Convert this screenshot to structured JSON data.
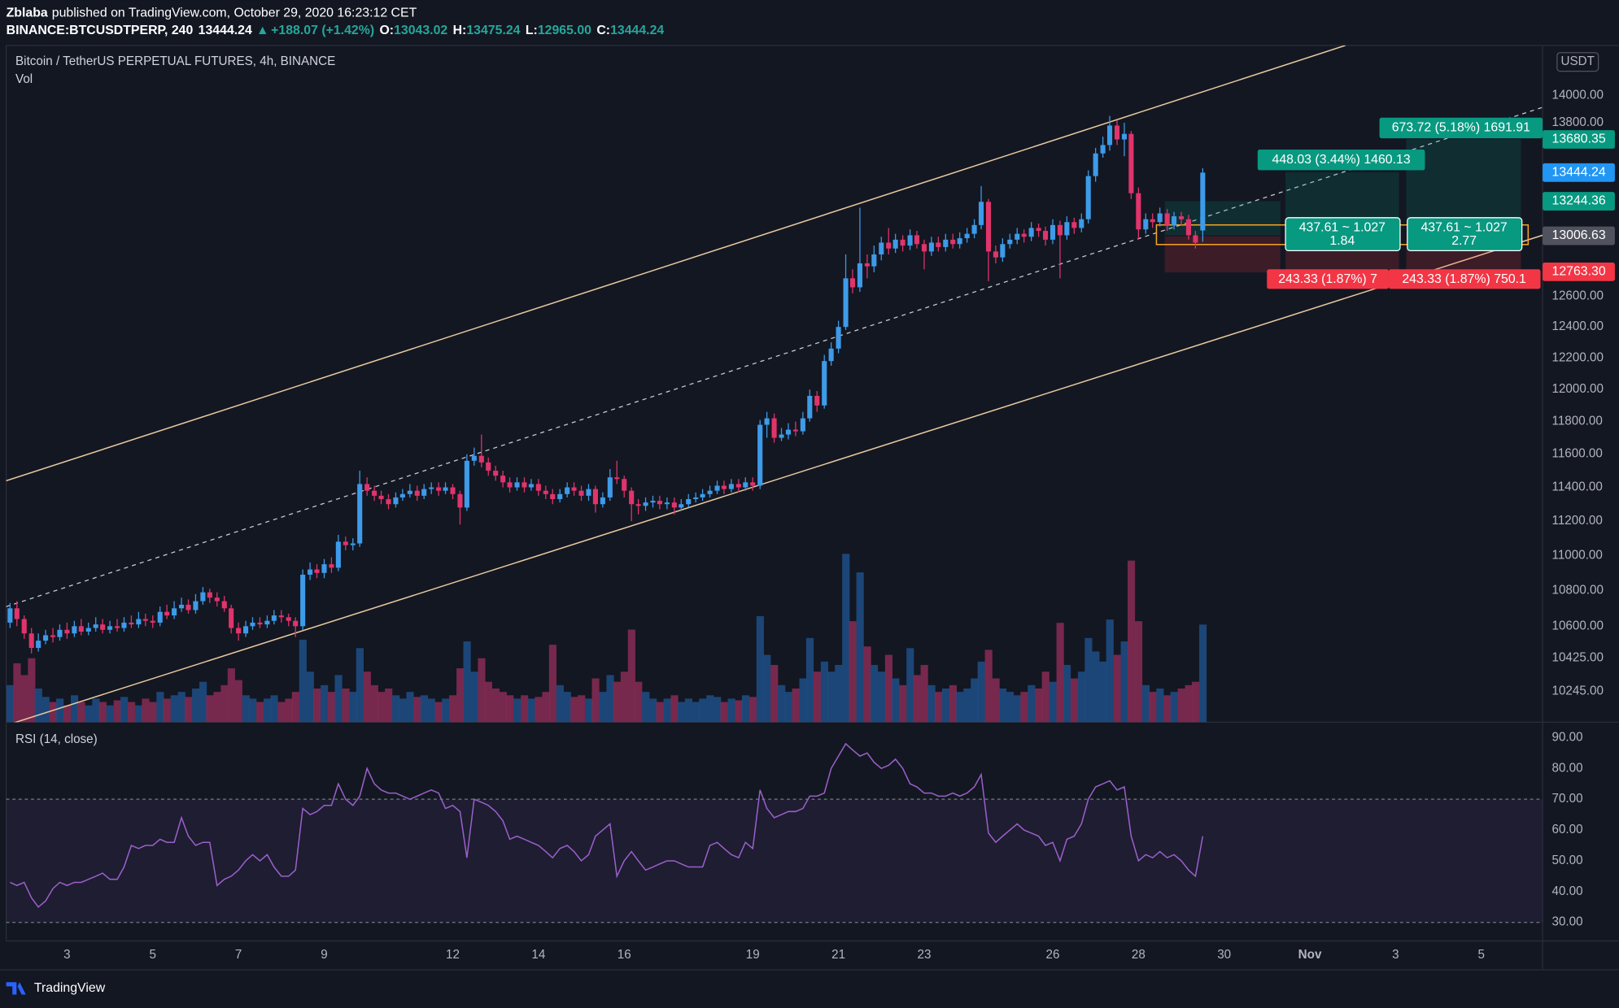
{
  "header": {
    "author": "Zblaba",
    "published": "published on TradingView.com, October 29, 2020 16:23:12 CET",
    "symbol": "BINANCE:BTCUSDTPERP, 240",
    "last": "13444.24",
    "arrow": "▲",
    "change": "+188.07 (+1.42%)",
    "o_label": "O:",
    "o": "13043.02",
    "h_label": "H:",
    "h": "13475.24",
    "l_label": "L:",
    "l": "12965.00",
    "c_label": "C:",
    "c": "13444.24"
  },
  "chart_data": {
    "type": "candlestick",
    "title": "Bitcoin / TetherUS PERPETUAL FUTURES, 4h, BINANCE",
    "currency": "USDT",
    "log_scale": true,
    "grid": false,
    "up_color": "#3d9be9",
    "down_color": "#e0346c",
    "xlim": [
      1.58,
      37.43
    ],
    "xticks": [
      3,
      5,
      7,
      9,
      12,
      14,
      16,
      19,
      21,
      23,
      26,
      28,
      30,
      {
        "value": 32,
        "label": "Nov"
      },
      {
        "value": 34,
        "label": "3"
      },
      {
        "value": 36,
        "label": "5"
      }
    ],
    "ylim": [
      10080,
      14371
    ],
    "yticks": [
      {
        "value": 10245,
        "label": "10245.00"
      },
      {
        "value": 10425,
        "label": "10425.00"
      },
      {
        "value": 10600,
        "label": "10600.00"
      },
      {
        "value": 10800,
        "label": "10800.00"
      },
      {
        "value": 11000,
        "label": "11000.00"
      },
      {
        "value": 11200,
        "label": "11200.00"
      },
      {
        "value": 11400,
        "label": "11400.00"
      },
      {
        "value": 11600,
        "label": "11600.00"
      },
      {
        "value": 11800,
        "label": "11800.00"
      },
      {
        "value": 12000,
        "label": "12000.00"
      },
      {
        "value": 12200,
        "label": "12200.00"
      },
      {
        "value": 12400,
        "label": "12400.00"
      },
      {
        "value": 12600,
        "label": "12600.00"
      },
      {
        "value": 13800,
        "label": "13800.00"
      },
      {
        "value": 14000,
        "label": "14000.00"
      }
    ],
    "x": [
      1.67,
      1.83,
      2,
      2.17,
      2.33,
      2.5,
      2.67,
      2.83,
      3,
      3.17,
      3.33,
      3.5,
      3.67,
      3.83,
      4,
      4.17,
      4.33,
      4.5,
      4.67,
      4.83,
      5,
      5.17,
      5.33,
      5.5,
      5.67,
      5.83,
      6,
      6.17,
      6.33,
      6.5,
      6.67,
      6.83,
      7,
      7.17,
      7.33,
      7.5,
      7.67,
      7.83,
      8,
      8.17,
      8.33,
      8.5,
      8.67,
      8.83,
      9,
      9.17,
      9.33,
      9.5,
      9.67,
      9.83,
      10,
      10.17,
      10.33,
      10.5,
      10.67,
      10.83,
      11,
      11.17,
      11.33,
      11.5,
      11.67,
      11.83,
      12,
      12.17,
      12.33,
      12.5,
      12.67,
      12.83,
      13,
      13.17,
      13.33,
      13.5,
      13.67,
      13.83,
      14,
      14.17,
      14.33,
      14.5,
      14.67,
      14.83,
      15,
      15.17,
      15.33,
      15.5,
      15.67,
      15.83,
      16,
      16.17,
      16.33,
      16.5,
      16.67,
      16.83,
      17,
      17.17,
      17.33,
      17.5,
      17.67,
      17.83,
      18,
      18.17,
      18.33,
      18.5,
      18.67,
      18.83,
      19,
      19.17,
      19.33,
      19.5,
      19.67,
      19.83,
      20,
      20.17,
      20.33,
      20.5,
      20.67,
      20.83,
      21,
      21.17,
      21.33,
      21.5,
      21.67,
      21.83,
      22,
      22.17,
      22.33,
      22.5,
      22.67,
      22.83,
      23,
      23.17,
      23.33,
      23.5,
      23.67,
      23.83,
      24,
      24.17,
      24.33,
      24.5,
      24.67,
      24.83,
      25,
      25.17,
      25.33,
      25.5,
      25.67,
      25.83,
      26,
      26.17,
      26.33,
      26.5,
      26.67,
      26.83,
      27,
      27.17,
      27.33,
      27.5,
      27.67,
      27.83,
      28,
      28.17,
      28.33,
      28.5,
      28.67,
      28.83,
      29,
      29.17,
      29.33,
      29.5
    ],
    "open": [
      10620,
      10700,
      10640,
      10560,
      10480,
      10520,
      10550,
      10540,
      10580,
      10560,
      10600,
      10570,
      10590,
      10610,
      10580,
      10600,
      10590,
      10620,
      10610,
      10640,
      10630,
      10620,
      10680,
      10660,
      10700,
      10720,
      10690,
      10740,
      10790,
      10760,
      10740,
      10700,
      10590,
      10560,
      10600,
      10620,
      10610,
      10630,
      10660,
      10650,
      10630,
      10600,
      10890,
      10920,
      10900,
      10950,
      10930,
      11080,
      11060,
      11070,
      11420,
      11380,
      11350,
      11330,
      11300,
      11340,
      11360,
      11380,
      11350,
      11390,
      11400,
      11380,
      11400,
      11360,
      11280,
      11560,
      11590,
      11550,
      11500,
      11470,
      11430,
      11400,
      11430,
      11400,
      11420,
      11380,
      11360,
      11330,
      11360,
      11400,
      11380,
      11350,
      11390,
      11300,
      11340,
      11460,
      11450,
      11380,
      11300,
      11290,
      11310,
      11320,
      11300,
      11310,
      11280,
      11300,
      11330,
      11340,
      11360,
      11380,
      11410,
      11390,
      11420,
      11400,
      11430,
      11410,
      11780,
      11820,
      11700,
      11720,
      11750,
      11740,
      11820,
      11960,
      11900,
      12180,
      12260,
      12400,
      12720,
      12660,
      12820,
      12800,
      12880,
      12960,
      12920,
      12980,
      12940,
      13010,
      12950,
      12900,
      12960,
      12930,
      12980,
      12950,
      12990,
      13020,
      13080,
      13240,
      12900,
      12860,
      12950,
      12980,
      13020,
      13000,
      13060,
      13040,
      12980,
      13080,
      13010,
      13100,
      13060,
      13120,
      13420,
      13580,
      13640,
      13780,
      13680,
      13720,
      13300,
      13050,
      13120,
      13100,
      13160,
      13080,
      13140,
      13120,
      13010,
      13043.02
    ],
    "high": [
      10730,
      10740,
      10660,
      10590,
      10560,
      10580,
      10590,
      10610,
      10620,
      10630,
      10640,
      10620,
      10650,
      10640,
      10630,
      10640,
      10650,
      10660,
      10680,
      10670,
      10660,
      10710,
      10720,
      10740,
      10760,
      10750,
      10780,
      10820,
      10810,
      10790,
      10770,
      10720,
      10620,
      10630,
      10650,
      10650,
      10660,
      10690,
      10690,
      10670,
      10650,
      10920,
      10960,
      10950,
      10980,
      10990,
      11120,
      11110,
      11100,
      11500,
      11460,
      11410,
      11380,
      11360,
      11370,
      11390,
      11420,
      11410,
      11420,
      11430,
      11430,
      11430,
      11420,
      11380,
      11600,
      11640,
      11720,
      11580,
      11530,
      11500,
      11460,
      11460,
      11460,
      11450,
      11450,
      11410,
      11390,
      11390,
      11430,
      11430,
      11410,
      11420,
      11410,
      11370,
      11510,
      11560,
      11470,
      11400,
      11330,
      11340,
      11350,
      11350,
      11340,
      11340,
      11330,
      11360,
      11370,
      11390,
      11410,
      11440,
      11440,
      11450,
      11450,
      11460,
      11460,
      11810,
      11860,
      11850,
      11760,
      11790,
      11800,
      11860,
      12000,
      11990,
      12220,
      12300,
      12440,
      12880,
      12780,
      13200,
      12880,
      12940,
      13000,
      13060,
      13020,
      13010,
      13050,
      13040,
      12980,
      13000,
      13000,
      13020,
      13020,
      13030,
      13060,
      13120,
      13350,
      13260,
      12940,
      12990,
      13020,
      13060,
      13050,
      13100,
      13090,
      13070,
      13120,
      13110,
      13140,
      13130,
      13160,
      13460,
      13620,
      13700,
      13850,
      13820,
      13800,
      13740,
      13340,
      13160,
      13160,
      13200,
      13190,
      13170,
      13170,
      13150,
      13040,
      13475.24
    ],
    "low": [
      10590,
      10600,
      10530,
      10450,
      10460,
      10500,
      10510,
      10520,
      10530,
      10540,
      10550,
      10550,
      10570,
      10560,
      10560,
      10570,
      10570,
      10590,
      10590,
      10600,
      10590,
      10600,
      10640,
      10640,
      10680,
      10670,
      10670,
      10720,
      10730,
      10710,
      10680,
      10560,
      10520,
      10540,
      10580,
      10590,
      10590,
      10610,
      10620,
      10600,
      10540,
      10580,
      10860,
      10870,
      10870,
      10900,
      10910,
      11030,
      11030,
      11050,
      11350,
      11320,
      11300,
      11270,
      11280,
      11320,
      11340,
      11320,
      11330,
      11360,
      11350,
      11360,
      11330,
      11180,
      11260,
      11530,
      11520,
      11470,
      11440,
      11400,
      11370,
      11380,
      11370,
      11380,
      11350,
      11330,
      11300,
      11310,
      11340,
      11350,
      11320,
      11320,
      11250,
      11280,
      11320,
      11420,
      11340,
      11200,
      11240,
      11260,
      11280,
      11270,
      11270,
      11240,
      11260,
      11280,
      11310,
      11320,
      11340,
      11360,
      11360,
      11370,
      11370,
      11380,
      11380,
      11390,
      11700,
      11670,
      11680,
      11690,
      11710,
      11720,
      11800,
      11860,
      11880,
      12150,
      12230,
      12380,
      12620,
      12630,
      12720,
      12760,
      12840,
      12880,
      12890,
      12900,
      12910,
      12920,
      12780,
      12870,
      12900,
      12900,
      12920,
      12920,
      12960,
      12990,
      13050,
      12700,
      12820,
      12830,
      12920,
      12950,
      12960,
      12970,
      13000,
      12940,
      12950,
      12720,
      12980,
      13020,
      13030,
      13090,
      13380,
      13550,
      13600,
      13640,
      13560,
      13260,
      12980,
      13020,
      13060,
      13070,
      13040,
      13050,
      13080,
      12980,
      12920,
      12965
    ],
    "close": [
      10700,
      10640,
      10560,
      10480,
      10520,
      10550,
      10540,
      10580,
      10560,
      10600,
      10570,
      10590,
      10610,
      10580,
      10600,
      10590,
      10620,
      10610,
      10640,
      10630,
      10620,
      10680,
      10660,
      10700,
      10720,
      10690,
      10740,
      10790,
      10760,
      10740,
      10700,
      10590,
      10560,
      10600,
      10620,
      10610,
      10630,
      10660,
      10650,
      10630,
      10600,
      10890,
      10920,
      10900,
      10950,
      10930,
      11080,
      11060,
      11070,
      11420,
      11380,
      11350,
      11330,
      11300,
      11340,
      11360,
      11380,
      11350,
      11390,
      11400,
      11380,
      11400,
      11360,
      11280,
      11560,
      11590,
      11550,
      11500,
      11470,
      11430,
      11400,
      11430,
      11400,
      11420,
      11380,
      11360,
      11330,
      11360,
      11400,
      11380,
      11350,
      11390,
      11300,
      11340,
      11460,
      11450,
      11380,
      11300,
      11290,
      11310,
      11320,
      11300,
      11310,
      11280,
      11300,
      11330,
      11340,
      11360,
      11380,
      11410,
      11390,
      11420,
      11400,
      11430,
      11410,
      11780,
      11820,
      11700,
      11720,
      11750,
      11740,
      11820,
      11960,
      11900,
      12180,
      12260,
      12400,
      12720,
      12660,
      12820,
      12800,
      12880,
      12960,
      12920,
      12980,
      12940,
      13010,
      12950,
      12900,
      12960,
      12930,
      12980,
      12950,
      12990,
      13020,
      13080,
      13240,
      12900,
      12860,
      12950,
      12980,
      13020,
      13000,
      13060,
      13040,
      12980,
      13080,
      13010,
      13100,
      13060,
      13120,
      13420,
      13580,
      13640,
      13780,
      13680,
      13720,
      13300,
      13050,
      13120,
      13100,
      13160,
      13080,
      13140,
      13120,
      13010,
      12960,
      13444.24
    ],
    "volume": {
      "name": "Vol",
      "up_color": "#1f4f86",
      "down_color": "#8a2c55",
      "ylim": [
        0,
        402
      ],
      "values": [
        22,
        35,
        28,
        38,
        20,
        15,
        12,
        14,
        10,
        16,
        12,
        10,
        14,
        12,
        10,
        13,
        15,
        12,
        10,
        14,
        12,
        18,
        14,
        16,
        18,
        15,
        20,
        24,
        16,
        18,
        22,
        32,
        25,
        16,
        14,
        12,
        14,
        16,
        12,
        14,
        18,
        49,
        30,
        20,
        22,
        18,
        28,
        20,
        18,
        44,
        30,
        22,
        18,
        20,
        16,
        14,
        18,
        15,
        16,
        14,
        12,
        14,
        16,
        32,
        48,
        30,
        38,
        24,
        20,
        18,
        16,
        14,
        16,
        14,
        15,
        18,
        46,
        22,
        18,
        15,
        16,
        14,
        26,
        18,
        28,
        24,
        30,
        55,
        24,
        18,
        14,
        12,
        14,
        16,
        12,
        14,
        12,
        14,
        16,
        15,
        12,
        14,
        13,
        16,
        15,
        63,
        40,
        34,
        22,
        18,
        20,
        26,
        50,
        30,
        36,
        30,
        34,
        100,
        60,
        89,
        45,
        34,
        30,
        40,
        26,
        22,
        44,
        28,
        34,
        22,
        18,
        20,
        22,
        18,
        20,
        26,
        36,
        43,
        26,
        20,
        18,
        16,
        18,
        22,
        20,
        30,
        24,
        59,
        34,
        26,
        30,
        50,
        42,
        36,
        61,
        40,
        48,
        96,
        60,
        22,
        18,
        20,
        16,
        18,
        20,
        22,
        24,
        58
      ]
    },
    "rsi": {
      "title": "RSI (14, close)",
      "color": "#9b5fc9",
      "ylim": [
        24,
        95
      ],
      "band": [
        30,
        70
      ],
      "yticks": [
        {
          "value": 30,
          "label": "30.00"
        },
        {
          "value": 40,
          "label": "40.00"
        },
        {
          "value": 50,
          "label": "50.00"
        },
        {
          "value": 60,
          "label": "60.00"
        },
        {
          "value": 70,
          "label": "70.00"
        },
        {
          "value": 80,
          "label": "80.00"
        },
        {
          "value": 90,
          "label": "90.00"
        }
      ],
      "values": [
        43,
        42,
        43,
        38,
        35,
        37,
        41,
        43,
        42,
        43,
        43,
        44,
        45,
        46,
        44,
        44,
        48,
        55,
        54,
        55,
        55,
        57,
        56,
        56,
        64,
        58,
        55,
        56,
        56,
        42,
        44,
        45,
        47,
        50,
        52,
        50,
        52,
        48,
        45,
        45,
        47,
        67,
        65,
        66,
        68,
        68,
        75,
        70,
        68,
        71,
        80,
        75,
        73,
        72,
        72,
        71,
        70,
        71,
        72,
        73,
        72,
        67,
        68,
        66,
        51,
        70,
        69,
        68,
        66,
        63,
        57,
        58,
        57,
        56,
        55,
        53,
        51,
        54,
        55,
        53,
        50,
        52,
        58,
        60,
        62,
        45,
        50,
        53,
        50,
        47,
        48,
        49,
        50,
        50,
        49,
        48,
        48,
        48,
        55,
        56,
        54,
        52,
        51,
        56,
        54,
        73,
        67,
        64,
        65,
        66,
        66,
        67,
        71,
        71,
        72,
        80,
        84,
        88,
        86,
        84,
        85,
        82,
        80,
        81,
        83,
        80,
        75,
        74,
        72,
        72,
        71,
        71,
        72,
        71,
        72,
        74,
        78,
        59,
        56,
        58,
        60,
        62,
        60,
        59,
        58,
        55,
        56,
        50,
        57,
        58,
        62,
        70,
        74,
        75,
        76,
        73,
        74,
        58,
        50,
        52,
        51,
        53,
        51,
        52,
        50,
        47,
        45,
        58
      ]
    },
    "price_labels": [
      {
        "value": 13680.35,
        "label": "13680.35",
        "color": "#089981"
      },
      {
        "value": 13444.24,
        "label": "13444.24",
        "color": "#2196f3"
      },
      {
        "value": 13244.36,
        "label": "13244.36",
        "color": "#089981"
      },
      {
        "value": 13006.63,
        "label": "13006.63",
        "color": "#50535e"
      },
      {
        "value": 12763.3,
        "label": "12763.30",
        "color": "#f23645"
      }
    ],
    "annotations": [
      "673.72 (5.18%) 1691.91",
      "448.03 (3.44%) 1460.13",
      "437.61 ~ 1.027",
      "1.84",
      "437.61 ~ 1.027",
      "2.77",
      "243.33 (1.87%) 7",
      "243.33 (1.87%) 750.1"
    ]
  },
  "footer": {
    "brand": "TradingView"
  }
}
